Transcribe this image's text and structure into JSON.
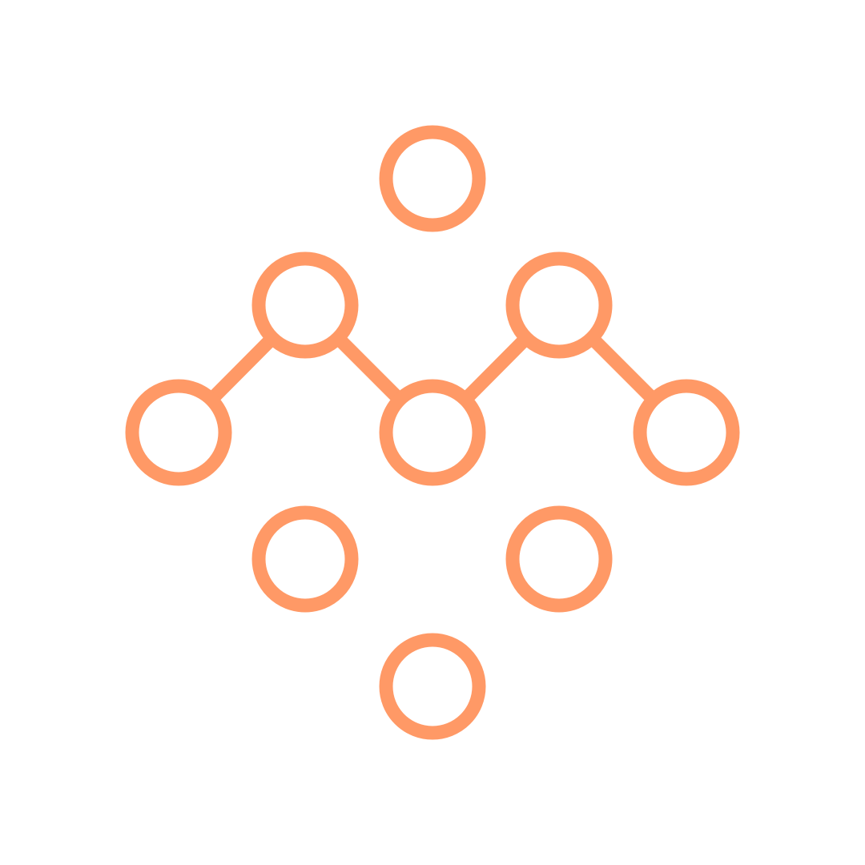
{
  "diagram": {
    "stroke_color": "#FF9966",
    "background": "#FFFFFF",
    "nodes": [
      {
        "id": "top"
      },
      {
        "id": "upper-left"
      },
      {
        "id": "upper-right"
      },
      {
        "id": "left"
      },
      {
        "id": "center"
      },
      {
        "id": "right"
      },
      {
        "id": "lower-left"
      },
      {
        "id": "lower-right"
      },
      {
        "id": "bottom"
      }
    ],
    "edges": [
      {
        "from": "left",
        "to": "upper-left"
      },
      {
        "from": "upper-left",
        "to": "center"
      },
      {
        "from": "center",
        "to": "upper-right"
      },
      {
        "from": "upper-right",
        "to": "right"
      }
    ]
  }
}
